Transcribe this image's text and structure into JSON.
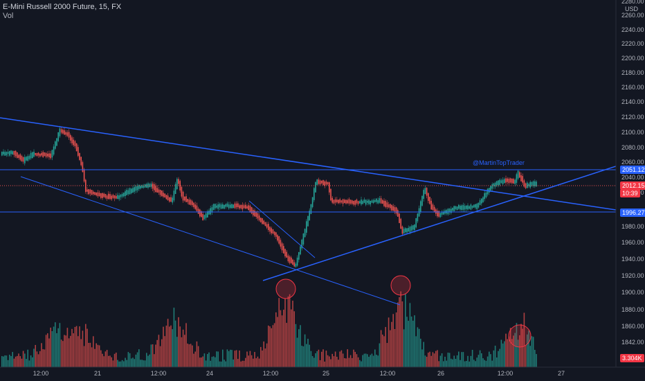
{
  "header": {
    "title": "E-Mini Russell 2000 Future, 15, FX",
    "indicator": "Vol"
  },
  "currency": "USD",
  "price_axis": {
    "labels": [
      "2260.00",
      "2240.00",
      "2220.00",
      "2200.00",
      "2180.00",
      "2160.00",
      "2140.00",
      "2120.00",
      "2100.00",
      "2080.00",
      "2060.00",
      "2040.00",
      "2020.00",
      "1980.00",
      "1960.00",
      "1940.00",
      "1920.00",
      "1900.00",
      "1880.00",
      "1860.00",
      "1842.00"
    ],
    "top_partial": "2280.00"
  },
  "price_tags": {
    "upper_level": {
      "text": "2051.12",
      "color": "#2962ff"
    },
    "current_price": {
      "text": "2012.15",
      "color": "#f23645"
    },
    "countdown": {
      "text": "10:39",
      "color": "#f23645"
    },
    "lower_level": {
      "text": "1996.27",
      "color": "#2962ff"
    },
    "volume": {
      "text": "3.304K",
      "color": "#f23645"
    }
  },
  "time_axis": [
    "12:00",
    "21",
    "12:00",
    "24",
    "12:00",
    "25",
    "12:00",
    "26",
    "12:00",
    "27"
  ],
  "annotation": "@MartinTopTrader",
  "colors": {
    "bg": "#131722",
    "up": "#26a69a",
    "down": "#ef5350",
    "line": "#2962ff",
    "circle": "#f23645"
  },
  "chart_data": {
    "type": "candlestick",
    "levels": [
      2051.12,
      1996.27
    ],
    "current_price": 2012.15
  }
}
